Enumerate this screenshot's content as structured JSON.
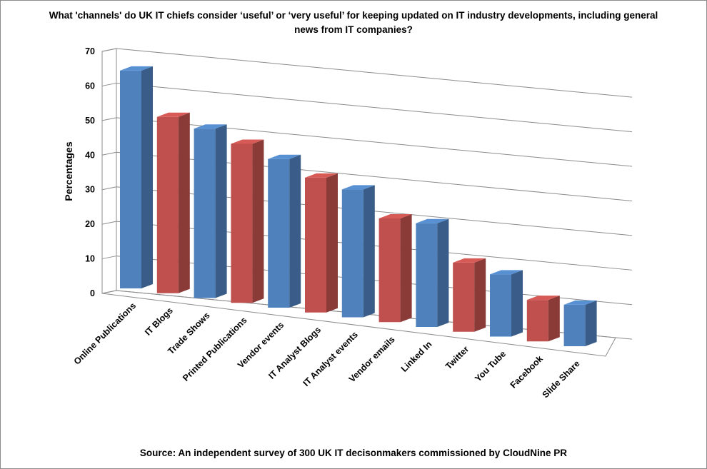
{
  "chart_data": {
    "type": "bar",
    "title": "What 'channels' do UK IT chiefs consider ‘useful’ or ‘very useful’ for keeping updated on IT industry developments, including general news from IT companies?",
    "ylabel": "Percentages",
    "xlabel": "",
    "ylim": [
      0,
      70
    ],
    "yticks": [
      0,
      10,
      20,
      30,
      40,
      50,
      60,
      70
    ],
    "grid": true,
    "three_d": true,
    "categories": [
      "Online Publications",
      "IT Blogs",
      "Trade Shows",
      "Printed Publications",
      "Vendor events",
      "IT Analyst Blogs",
      "IT Analyst events",
      "Vendor emails",
      "Linked In",
      "Twitter",
      "You Tube",
      "Facebook",
      "Slide Share"
    ],
    "values": [
      63,
      51,
      49,
      46,
      43,
      39,
      37,
      30,
      30,
      20,
      18,
      12,
      12
    ],
    "colors": [
      "#4f81bd",
      "#c0504d",
      "#4f81bd",
      "#c0504d",
      "#4f81bd",
      "#c0504d",
      "#4f81bd",
      "#c0504d",
      "#4f81bd",
      "#c0504d",
      "#4f81bd",
      "#c0504d",
      "#4f81bd"
    ]
  },
  "source": "Source: An independent survey of 300 UK IT decisonmakers commissioned by CloudNine PR"
}
